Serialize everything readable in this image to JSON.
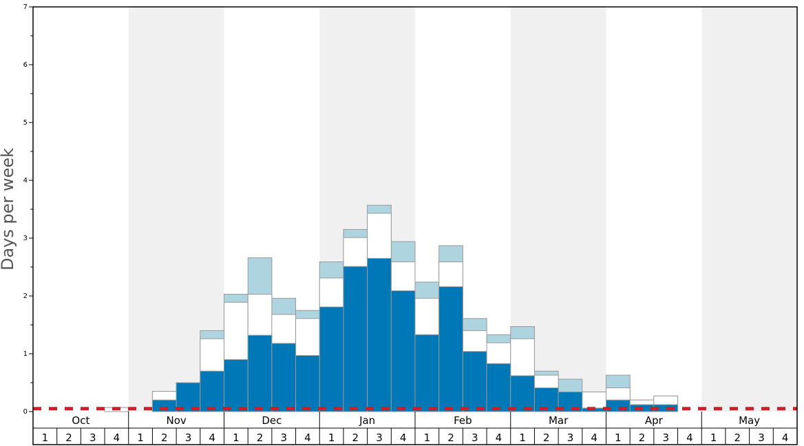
{
  "chart_data": {
    "type": "bar",
    "ylabel": "Days per week",
    "ylim": [
      0,
      7
    ],
    "yticks": [
      "0",
      "1",
      "2",
      "3",
      "4",
      "5",
      "6",
      "7"
    ],
    "months": [
      "Oct",
      "Nov",
      "Dec",
      "Jan",
      "Feb",
      "Mar",
      "Apr",
      "May"
    ],
    "week_labels": [
      "1",
      "2",
      "3",
      "4"
    ],
    "colors": {
      "base": "#0077b6",
      "middle": "#ffffff",
      "top": "#aed4e0",
      "reference_line": "#cc1f2e",
      "shade": "#f0f0f0"
    },
    "reference_line_value": 0.05,
    "series": [
      {
        "values": [
          0,
          0,
          0,
          0,
          0,
          0.2,
          0.5,
          0.7,
          0.9,
          1.32,
          1.18,
          0.97,
          1.81,
          2.51,
          2.65,
          2.09,
          1.33,
          2.16,
          1.04,
          0.83,
          0.62,
          0.41,
          0.34,
          0.06,
          0.2,
          0.12,
          0.12,
          0,
          0,
          0,
          0,
          0
        ]
      },
      {
        "values": [
          0,
          0,
          0,
          0.07,
          0,
          0.35,
          0.5,
          1.26,
          1.89,
          2.03,
          1.68,
          1.61,
          2.31,
          3.01,
          3.43,
          2.59,
          1.96,
          2.59,
          1.4,
          1.19,
          1.26,
          0.63,
          0.34,
          0.34,
          0.41,
          0.2,
          0.27,
          0,
          0,
          0,
          0,
          0
        ]
      },
      {
        "values": [
          0,
          0,
          0,
          0.07,
          0,
          0.35,
          0.5,
          1.4,
          2.03,
          2.66,
          1.96,
          1.75,
          2.59,
          3.15,
          3.57,
          2.94,
          2.24,
          2.87,
          1.61,
          1.33,
          1.47,
          0.7,
          0.56,
          0.34,
          0.63,
          0.2,
          0.27,
          0,
          0,
          0,
          0,
          0
        ]
      }
    ]
  }
}
